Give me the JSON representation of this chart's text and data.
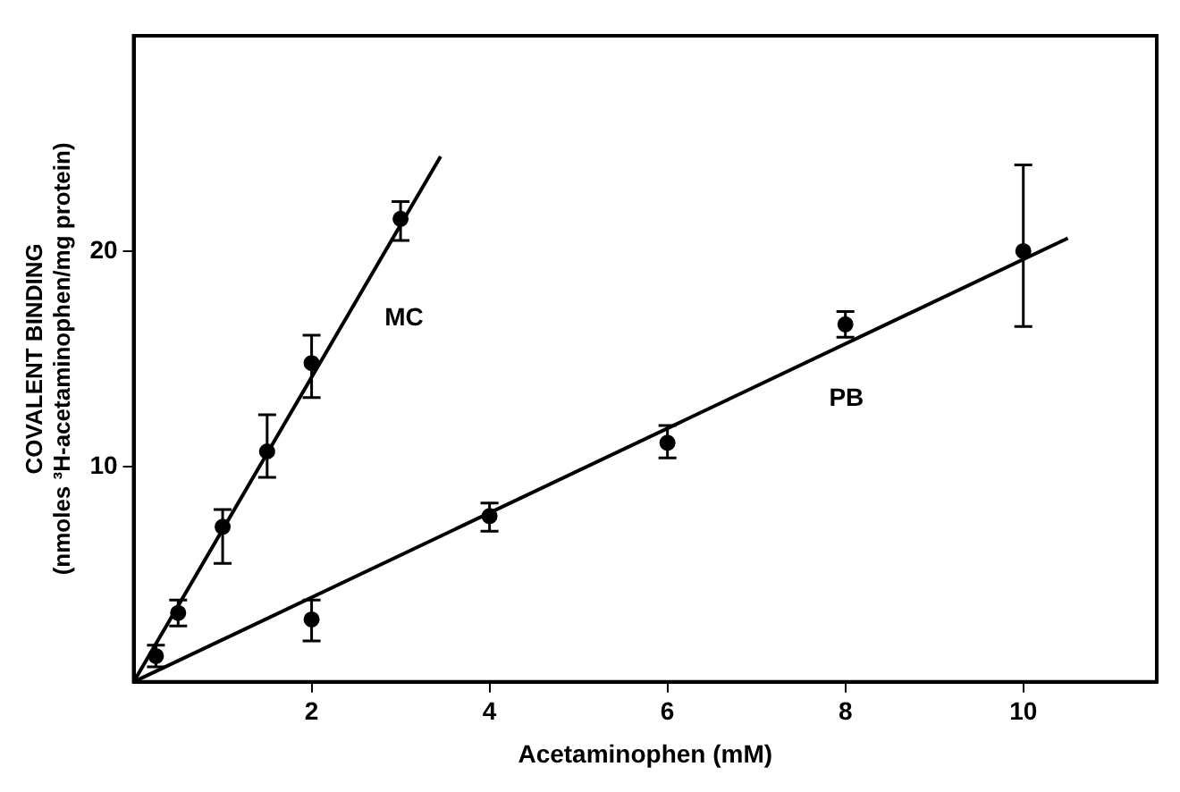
{
  "chart_data": {
    "type": "scatter",
    "xlabel": "Acetaminophen (mM)",
    "ylabel": "COVALENT BINDING\n(nmoles ³H-acetaminophen/mg protein)",
    "xlim": [
      0,
      11.5
    ],
    "ylim": [
      0,
      30
    ],
    "xticks": [
      2,
      4,
      6,
      8,
      10
    ],
    "yticks": [
      10,
      20
    ],
    "grid": false,
    "legend": false,
    "series": [
      {
        "color": "#000000",
        "marker": "circle",
        "x": [
          0.25,
          0.5,
          1,
          1.5,
          2,
          3
        ],
        "values": [
          1.2,
          3.2,
          7.2,
          10.7,
          14.8,
          21.5
        ],
        "errors": [
          [
            0.7,
            1.7
          ],
          [
            2.6,
            3.8
          ],
          [
            5.5,
            8.0
          ],
          [
            9.5,
            12.4
          ],
          [
            13.2,
            16.1
          ],
          [
            20.5,
            22.3
          ]
        ]
      },
      {
        "color": "#000000",
        "marker": "circle",
        "x": [
          2,
          4,
          6,
          8,
          10
        ],
        "values": [
          2.9,
          7.7,
          11.1,
          16.6,
          20.0
        ],
        "errors": [
          [
            1.9,
            3.8
          ],
          [
            7.0,
            8.3
          ],
          [
            10.4,
            11.9
          ],
          [
            16.0,
            17.2
          ],
          [
            16.5,
            24.0
          ]
        ]
      },
      {
        "type": "line",
        "name": "MC",
        "color": "#000000",
        "x": [
          0,
          3.45
        ],
        "values": [
          0,
          24.4
        ]
      },
      {
        "type": "line",
        "name": "PB",
        "color": "#000000",
        "x": [
          0,
          10.5
        ],
        "values": [
          0,
          20.6
        ]
      }
    ]
  }
}
